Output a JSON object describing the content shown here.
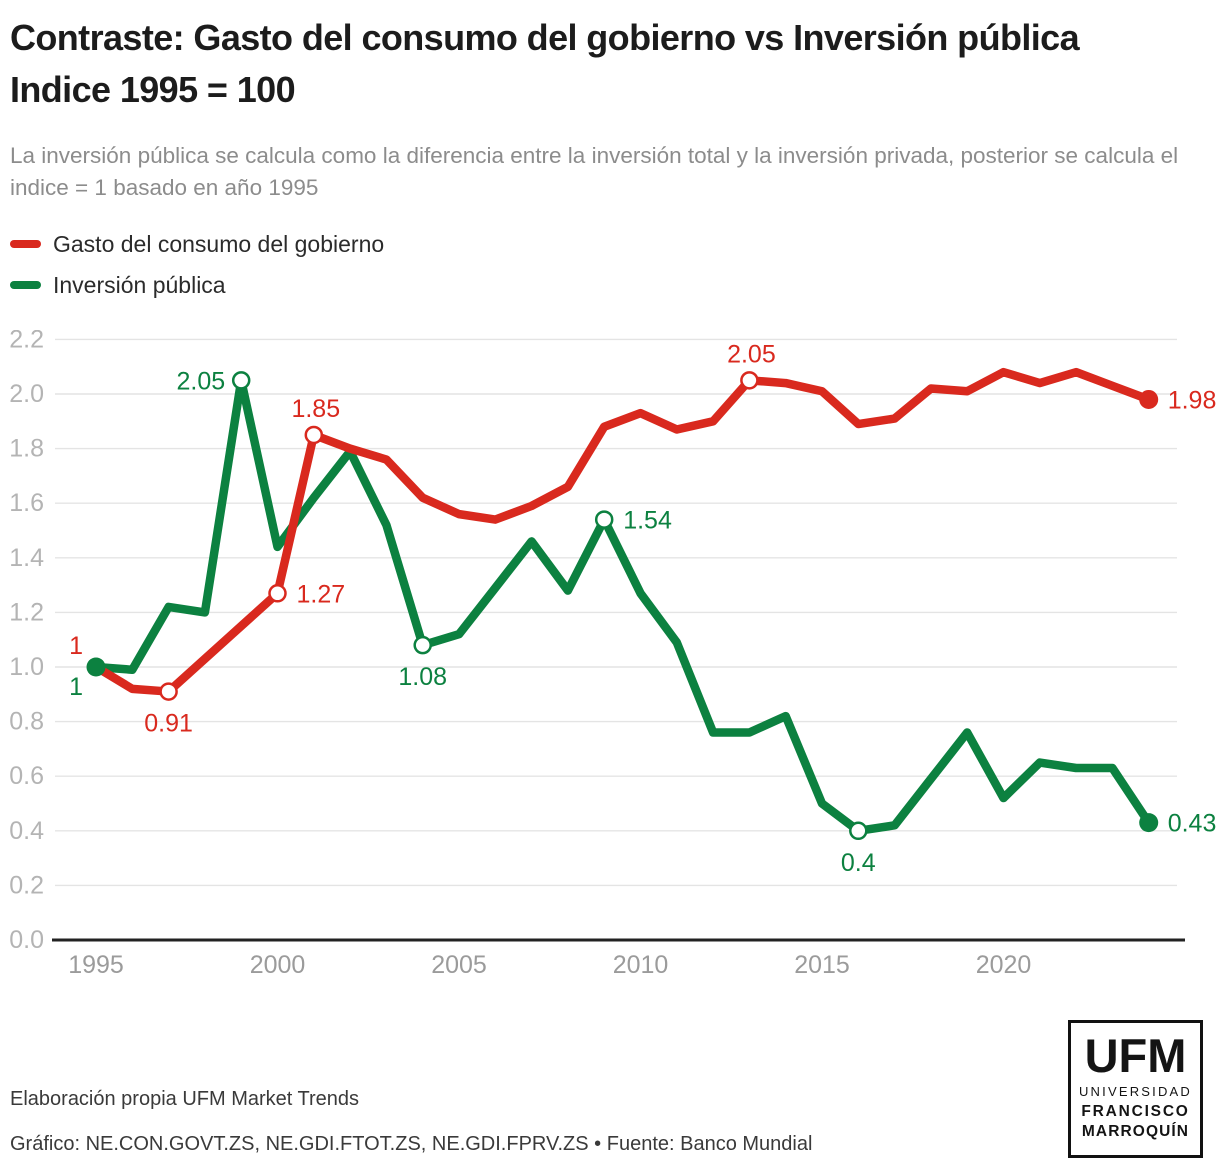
{
  "header": {
    "title_line1": "Contraste: Gasto del consumo del gobierno vs Inversión pública",
    "title_line2": "Indice 1995 = 100",
    "subtitle": "La inversión pública se calcula como la diferencia entre la inversión total y la inversión privada, posterior se calcula el indice = 1 basado en año 1995"
  },
  "legend": [
    {
      "label": "Gasto del consumo del gobierno",
      "color": "#d9291e"
    },
    {
      "label": "Inversión pública",
      "color": "#0c8140"
    }
  ],
  "chart_data": {
    "type": "line",
    "x": [
      1995,
      1996,
      1997,
      1998,
      1999,
      2000,
      2001,
      2002,
      2003,
      2004,
      2005,
      2006,
      2007,
      2008,
      2009,
      2010,
      2011,
      2012,
      2013,
      2014,
      2015,
      2016,
      2017,
      2018,
      2019,
      2020,
      2021,
      2022,
      2023,
      2024
    ],
    "series": [
      {
        "name": "Gasto del consumo del gobierno",
        "color": "#d9291e",
        "values": [
          1.0,
          0.92,
          0.91,
          1.03,
          1.15,
          1.27,
          1.85,
          1.8,
          1.76,
          1.62,
          1.56,
          1.54,
          1.59,
          1.66,
          1.88,
          1.93,
          1.87,
          1.9,
          2.05,
          2.04,
          2.01,
          1.89,
          1.91,
          2.02,
          2.01,
          2.08,
          2.04,
          2.08,
          2.03,
          1.98
        ]
      },
      {
        "name": "Inversión pública",
        "color": "#0c8140",
        "values": [
          1.0,
          0.99,
          1.22,
          1.2,
          2.05,
          1.44,
          1.62,
          1.79,
          1.52,
          1.08,
          1.12,
          1.29,
          1.46,
          1.28,
          1.54,
          1.27,
          1.09,
          0.76,
          0.76,
          0.82,
          0.5,
          0.4,
          0.42,
          0.59,
          0.76,
          0.52,
          0.65,
          0.63,
          0.63,
          0.43
        ]
      }
    ],
    "annotations": [
      {
        "series": 0,
        "year": 1995,
        "text": "1",
        "marker": "none",
        "placement": "above-left"
      },
      {
        "series": 0,
        "year": 1997,
        "text": "0.91",
        "marker": "open",
        "placement": "below"
      },
      {
        "series": 0,
        "year": 2000,
        "text": "1.27",
        "marker": "open",
        "placement": "right"
      },
      {
        "series": 0,
        "year": 2001,
        "text": "1.85",
        "marker": "open",
        "placement": "above"
      },
      {
        "series": 0,
        "year": 2013,
        "text": "2.05",
        "marker": "open",
        "placement": "above"
      },
      {
        "series": 0,
        "year": 2024,
        "text": "1.98",
        "marker": "filled",
        "placement": "right"
      },
      {
        "series": 1,
        "year": 1995,
        "text": "1",
        "marker": "filled",
        "placement": "below-left"
      },
      {
        "series": 1,
        "year": 1999,
        "text": "2.05",
        "marker": "open",
        "placement": "left"
      },
      {
        "series": 1,
        "year": 2004,
        "text": "1.08",
        "marker": "open",
        "placement": "below"
      },
      {
        "series": 1,
        "year": 2009,
        "text": "1.54",
        "marker": "open",
        "placement": "right"
      },
      {
        "series": 1,
        "year": 2016,
        "text": "0.4",
        "marker": "open",
        "placement": "below"
      },
      {
        "series": 1,
        "year": 2024,
        "text": "0.43",
        "marker": "filled",
        "placement": "right"
      }
    ],
    "x_ticks": [
      1995,
      2000,
      2005,
      2010,
      2015,
      2020
    ],
    "y_ticks": [
      0.0,
      0.2,
      0.4,
      0.6,
      0.8,
      1.0,
      1.2,
      1.4,
      1.6,
      1.8,
      2.0,
      2.2
    ],
    "ylim": [
      0,
      2.2
    ],
    "grid": true,
    "legend_position": "top-left",
    "colors": {
      "grid": "#e4e4e4",
      "axis": "#222222",
      "y_tick_label": "#b4b4b4",
      "x_tick_label": "#9b9b9b"
    }
  },
  "footer": {
    "line1": "Elaboración propia UFM Market Trends",
    "line2": "Gráfico: NE.CON.GOVT.ZS, NE.GDI.FTOT.ZS, NE.GDI.FPRV.ZS • Fuente: Banco Mundial"
  },
  "logo": {
    "acronym": "UFM",
    "line1": "UNIVERSIDAD",
    "line2": "FRANCISCO",
    "line3": "MARROQUÍN"
  }
}
